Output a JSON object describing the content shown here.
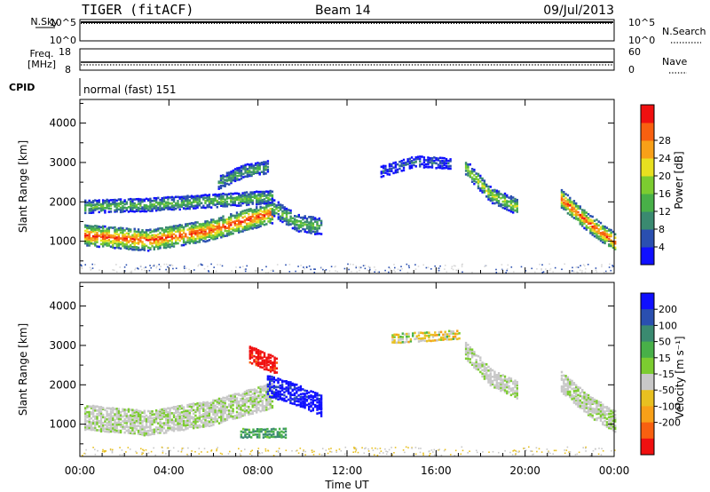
{
  "header": {
    "radar": "TIGER (fitACF)",
    "beam": "Beam 14",
    "date": "09/Jul/2013"
  },
  "strips": {
    "nsky": {
      "label": "N.Sky",
      "tick_top": "10^5",
      "tick_bottom": "10^0"
    },
    "nsearch": {
      "label": "N.Search",
      "tick_top": "10^5",
      "tick_bottom": "10^0"
    },
    "freq": {
      "label_line1": "Freq.",
      "label_line2": "[MHz]",
      "tick_top": "18",
      "tick_bottom": "8"
    },
    "nave": {
      "label": "Nave",
      "tick_top": "60",
      "tick_bottom": "0"
    },
    "cpid": {
      "label": "CPID",
      "text": "normal (fast) 151"
    }
  },
  "chart_data": [
    {
      "type": "heatmap",
      "name": "power",
      "ylabel": "Slant Range [km]",
      "ylim": [
        180,
        4600
      ],
      "yticks": [
        "1000",
        "2000",
        "3000",
        "4000"
      ],
      "colorbar_label": "Power [dB]",
      "colorbar_ticks": [
        "4",
        "8",
        "12",
        "16",
        "20",
        "24",
        "28"
      ],
      "colorbar_colors": [
        "#1010ff",
        "#2a4fb0",
        "#3a8a70",
        "#48b048",
        "#7ccc30",
        "#e8e020",
        "#f8a018",
        "#f86010",
        "#f01010"
      ],
      "regions": [
        {
          "x": [
            0.2,
            8.6
          ],
          "ymid": [
            1180,
            1050,
            1300,
            1750
          ],
          "halfwidth": 250,
          "core": 28
        },
        {
          "x": [
            0.2,
            8.6
          ],
          "ymid": [
            1900,
            1950,
            2050,
            2150
          ],
          "halfwidth": 150,
          "core": 14
        },
        {
          "x": [
            8.6,
            10.8
          ],
          "ymid": [
            1900,
            1500,
            1400
          ],
          "halfwidth": 200,
          "core": 14
        },
        {
          "x": [
            6.2,
            8.4
          ],
          "ymid": [
            2500,
            2800,
            2900
          ],
          "halfwidth": 150,
          "core": 12
        },
        {
          "x": [
            17.3,
            19.6
          ],
          "ymid": [
            2900,
            2200,
            1900
          ],
          "halfwidth": 180,
          "core": 18
        },
        {
          "x": [
            21.6,
            24.0
          ],
          "ymid": [
            2100,
            1500,
            1000
          ],
          "halfwidth": 220,
          "core": 28
        },
        {
          "x": [
            13.5,
            16.6
          ],
          "ymid": [
            2800,
            3050,
            3000
          ],
          "halfwidth": 120,
          "core": 6
        }
      ]
    },
    {
      "type": "heatmap",
      "name": "velocity",
      "xlabel": "Time UT",
      "ylabel": "Slant Range [km]",
      "xlim": [
        0,
        24
      ],
      "xticks": [
        "00:00",
        "04:00",
        "08:00",
        "12:00",
        "16:00",
        "20:00",
        "00:00"
      ],
      "ylim": [
        180,
        4600
      ],
      "yticks": [
        "1000",
        "2000",
        "3000",
        "4000"
      ],
      "colorbar_label": "Velocity [m s⁻¹]",
      "colorbar_ticks": [
        "200",
        "100",
        "50",
        "15",
        "-15",
        "-50",
        "-100",
        "-200"
      ],
      "colorbar_colors": [
        "#1010ff",
        "#2a4fb0",
        "#3a8a70",
        "#48b048",
        "#7ccc30",
        "#c8c8c8",
        "#e8c020",
        "#f8a018",
        "#f86010",
        "#f01010"
      ],
      "regions": [
        {
          "x": [
            0.2,
            8.6
          ],
          "ymid": [
            1200,
            1050,
            1300,
            1750
          ],
          "halfwidth": 300,
          "v": 0
        },
        {
          "x": [
            8.4,
            10.8
          ],
          "ymid": [
            2000,
            1800,
            1500
          ],
          "halfwidth": 250,
          "v": 180
        },
        {
          "x": [
            7.6,
            8.8
          ],
          "ymid": [
            2800,
            2500
          ],
          "halfwidth": 200,
          "v": -180
        },
        {
          "x": [
            17.3,
            19.6
          ],
          "ymid": [
            2900,
            2200,
            1900
          ],
          "halfwidth": 200,
          "v": 0
        },
        {
          "x": [
            21.6,
            24.0
          ],
          "ymid": [
            2100,
            1500,
            1100
          ],
          "halfwidth": 250,
          "v": 0
        },
        {
          "x": [
            14.0,
            17.0
          ],
          "ymid": [
            3200,
            3300
          ],
          "halfwidth": 100,
          "v": -20
        },
        {
          "x": [
            7.2,
            9.2
          ],
          "ymid": [
            800,
            800
          ],
          "halfwidth": 100,
          "v": 50
        }
      ]
    }
  ]
}
